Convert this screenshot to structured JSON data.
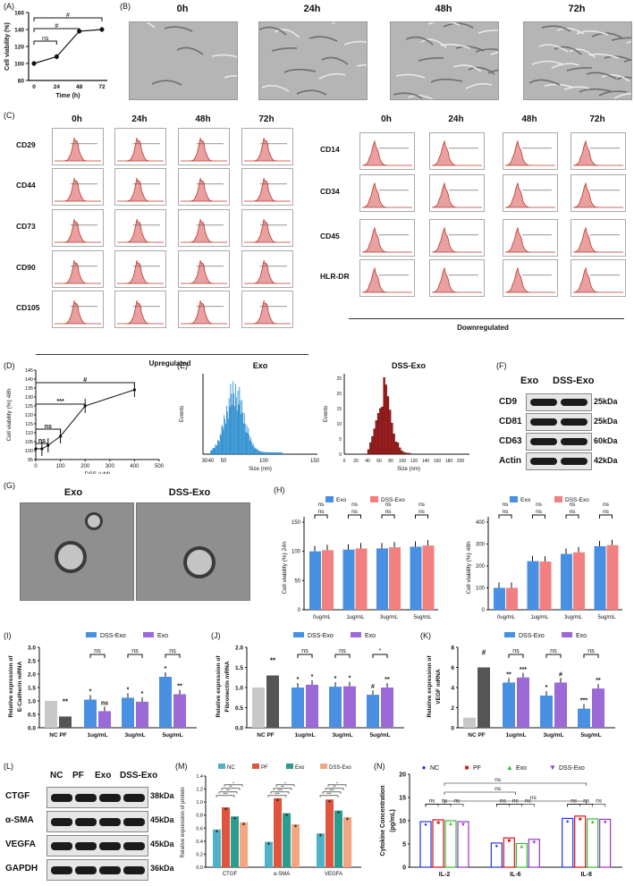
{
  "panels": {
    "A": "(A)",
    "B": "(B)",
    "C": "(C)",
    "D": "(D)",
    "E": "(E)",
    "F": "(F)",
    "G": "(G)",
    "H": "(H)",
    "I": "(I)",
    "J": "(J)",
    "K": "(K)",
    "L": "(L)",
    "M": "(M)",
    "N": "(N)"
  },
  "panelA": {
    "ylabel": "Cell viability (%)",
    "xlabel": "Time (h)",
    "x": [
      0,
      24,
      48,
      72
    ],
    "y": [
      100,
      108,
      138,
      140
    ],
    "err": [
      3,
      3,
      3,
      3
    ],
    "yticks": [
      80,
      100,
      120,
      140,
      160
    ],
    "sig": [
      "ns",
      "#",
      "#"
    ]
  },
  "panelB": {
    "times": [
      "0h",
      "24h",
      "48h",
      "72h"
    ]
  },
  "panelC": {
    "times": [
      "0h",
      "24h",
      "48h",
      "72h"
    ],
    "up_markers": [
      "CD29",
      "CD44",
      "CD73",
      "CD90",
      "CD105"
    ],
    "down_markers": [
      "CD14",
      "CD34",
      "CD45",
      "HLR-DR"
    ],
    "up_caption": "Upregulated",
    "down_caption": "Downregulated"
  },
  "panelD": {
    "ylabel": "Cell viability (%) 48h",
    "xlabel": "DSS (μM)",
    "x": [
      0,
      25,
      50,
      100,
      200,
      400
    ],
    "y": [
      101,
      101,
      103,
      108,
      125,
      134
    ],
    "xticks": [
      0,
      100,
      200,
      300,
      400,
      500
    ],
    "yticks": [
      95,
      100,
      105,
      110,
      115,
      120,
      125,
      130,
      135,
      140,
      145
    ],
    "sig": [
      "ns",
      "ns",
      "***",
      "#"
    ]
  },
  "panelE": {
    "exo": {
      "title": "Exo",
      "xlabel": "Size (nm)",
      "ylabel": "Events",
      "xticks": [
        "30",
        "40",
        "50",
        "100",
        "150"
      ]
    },
    "dss": {
      "title": "DSS-Exo",
      "xlabel": "Size (nm)",
      "ylabel": "Events",
      "xticks": [
        "0",
        "20",
        "40",
        "60",
        "80",
        "100",
        "120",
        "140",
        "160",
        "180",
        "200"
      ],
      "yticks": [
        "0",
        "5",
        "10",
        "15",
        "20",
        "25"
      ]
    }
  },
  "panelF": {
    "cols": [
      "Exo",
      "DSS-Exo"
    ],
    "rows": [
      {
        "name": "CD9",
        "kda": "25kDa"
      },
      {
        "name": "CD81",
        "kda": "25kDa"
      },
      {
        "name": "CD63",
        "kda": "60kDa"
      },
      {
        "name": "Actin",
        "kda": "42kDa"
      }
    ]
  },
  "panelG": {
    "labels": [
      "Exo",
      "DSS-Exo"
    ]
  },
  "panelH": {
    "legend": [
      "Exo",
      "DSS-Exo"
    ],
    "categories": [
      "0ug/mL",
      "1ug/mL",
      "3ug/mL",
      "5ug/mL"
    ],
    "left": {
      "ylabel": "Cell viability (%) 24h",
      "exo": [
        100,
        103,
        105,
        108
      ],
      "dss": [
        102,
        105,
        107,
        110
      ],
      "yticks": [
        "0",
        "50",
        "100",
        "150"
      ],
      "sig": [
        "ns",
        "ns",
        "ns",
        "ns",
        "ns",
        "ns",
        "ns",
        "ns"
      ]
    },
    "right": {
      "ylabel": "Cell viability (%) 48h",
      "exo": [
        100,
        222,
        255,
        290
      ],
      "dss": [
        100,
        220,
        262,
        295
      ],
      "yticks": [
        "0",
        "100",
        "200",
        "300",
        "400"
      ],
      "sig": [
        "ns",
        "ns",
        "ns",
        "ns",
        "ns",
        "ns",
        "ns",
        "ns"
      ]
    }
  },
  "panelI": {
    "ylabel": "Relative expression of E-Cadherin mRNA",
    "legend": [
      "DSS-Exo",
      "Exo"
    ],
    "categories": [
      "NC PF",
      "1ug/mL",
      "3ug/mL",
      "5ug/mL"
    ],
    "nc": 1.0,
    "pf": 0.42,
    "dss": [
      1.05,
      1.12,
      1.9
    ],
    "exo": [
      0.62,
      0.97,
      1.25
    ],
    "yticks": [
      "0.0",
      "0.5",
      "1.0",
      "1.5",
      "2.0",
      "2.5",
      "3.0"
    ],
    "marks": [
      "**",
      "*",
      "ns",
      "*",
      "*",
      "*",
      "**",
      "ns",
      "ns",
      "ns"
    ]
  },
  "panelJ": {
    "ylabel": "Relative expression of Fibronectin mRNA",
    "legend": [
      "DSS-Exo",
      "Exo"
    ],
    "categories": [
      "NC PF",
      "1ug/mL",
      "3ug/mL",
      "5ug/mL"
    ],
    "nc": 1.0,
    "pf": 1.3,
    "dss": [
      1.0,
      1.02,
      0.82
    ],
    "exo": [
      1.07,
      1.03,
      1.0
    ],
    "yticks": [
      "0.0",
      "0.5",
      "1.0",
      "1.5",
      "2.0"
    ],
    "marks": [
      "**",
      "*",
      "*",
      "*",
      "*",
      "#",
      "**",
      "ns",
      "ns",
      "ns",
      "*"
    ]
  },
  "panelK": {
    "ylabel": "Relative expression of VEGF mRNA",
    "legend": [
      "DSS-Exo",
      "Exo"
    ],
    "categories": [
      "NC PF",
      "1ug/mL",
      "3ug/mL",
      "5ug/mL"
    ],
    "nc": 1.0,
    "pf": 6.0,
    "dss": [
      4.5,
      3.2,
      1.9
    ],
    "exo": [
      5.0,
      4.5,
      3.9
    ],
    "yticks": [
      "0",
      "2",
      "4",
      "6",
      "8"
    ],
    "marks": [
      "#",
      "**",
      "***",
      "*",
      "#",
      "***",
      "**",
      "ns",
      "ns",
      "ns"
    ]
  },
  "panelL": {
    "cols": [
      "NC",
      "PF",
      "Exo",
      "DSS-Exo"
    ],
    "rows": [
      {
        "name": "CTGF",
        "kda": "38kDa"
      },
      {
        "name": "α-SMA",
        "kda": "45kDa"
      },
      {
        "name": "VEGFA",
        "kda": "45kDa"
      },
      {
        "name": "GAPDH",
        "kda": "36kDa"
      }
    ]
  },
  "panelM": {
    "ylabel": "Relative expression of  protein",
    "legend": [
      "NC",
      "PF",
      "Exo",
      "DSS-Exo"
    ],
    "categories": [
      "CTGF",
      "α-SMA",
      "VEGFA"
    ],
    "series": [
      {
        "name": "NC",
        "values": [
          0.58,
          0.39,
          0.52
        ]
      },
      {
        "name": "PF",
        "values": [
          0.92,
          1.06,
          1.04
        ]
      },
      {
        "name": "Exo",
        "values": [
          0.78,
          0.83,
          0.87
        ]
      },
      {
        "name": "DSS-Exo",
        "values": [
          0.69,
          0.66,
          0.77
        ]
      }
    ],
    "yticks": [
      "0.0",
      "0.2",
      "0.4",
      "0.6",
      "0.8",
      "1.0",
      "1.2",
      "1.4"
    ],
    "sig": [
      "***",
      "**",
      "**",
      "*",
      "***",
      "***",
      "**",
      "*",
      "***",
      "***",
      "**",
      "*"
    ]
  },
  "panelN": {
    "ylabel": "Cytokine Concentration (pg/mL)",
    "legend": [
      "NC",
      "PF",
      "Exo",
      "DSS-Exo"
    ],
    "categories": [
      "IL-2",
      "IL-6",
      "IL-8"
    ],
    "series": [
      {
        "name": "NC",
        "values": [
          9.8,
          5.2,
          10.5
        ]
      },
      {
        "name": "PF",
        "values": [
          10.2,
          6.3,
          11.0
        ]
      },
      {
        "name": "Exo",
        "values": [
          10.0,
          5.1,
          10.4
        ]
      },
      {
        "name": "DSS-Exo",
        "values": [
          9.8,
          6.0,
          10.3
        ]
      }
    ],
    "yticks": [
      "0",
      "5",
      "10",
      "15",
      "20"
    ],
    "sig": [
      "ns",
      "ns",
      "ns",
      "ns",
      "ns",
      "ns",
      "ns",
      "ns",
      "ns",
      "ns",
      "ns",
      "ns",
      "ns",
      "ns",
      "ns"
    ]
  },
  "chart_data": [
    {
      "type": "line",
      "title": "",
      "xlabel": "Time (h)",
      "ylabel": "Cell viability (%)",
      "x": [
        0,
        24,
        48,
        72
      ],
      "values": [
        100,
        108,
        138,
        140
      ],
      "ylim": [
        80,
        160
      ]
    },
    {
      "type": "line",
      "title": "",
      "xlabel": "DSS (μM)",
      "ylabel": "Cell viability (%) 48h",
      "x": [
        0,
        25,
        50,
        100,
        200,
        400
      ],
      "values": [
        101,
        101,
        103,
        108,
        125,
        134
      ],
      "ylim": [
        95,
        145
      ]
    },
    {
      "type": "bar",
      "title": "Relative expression of  protein",
      "categories": [
        "CTGF",
        "α-SMA",
        "VEGFA"
      ],
      "series": [
        {
          "name": "NC",
          "values": [
            0.58,
            0.39,
            0.52
          ]
        },
        {
          "name": "PF",
          "values": [
            0.92,
            1.06,
            1.04
          ]
        },
        {
          "name": "Exo",
          "values": [
            0.78,
            0.83,
            0.87
          ]
        },
        {
          "name": "DSS-Exo",
          "values": [
            0.69,
            0.66,
            0.77
          ]
        }
      ],
      "ylim": [
        0,
        1.4
      ]
    },
    {
      "type": "bar",
      "title": "Cytokine Concentration (pg/mL)",
      "categories": [
        "IL-2",
        "IL-6",
        "IL-8"
      ],
      "series": [
        {
          "name": "NC",
          "values": [
            9.8,
            5.2,
            10.5
          ]
        },
        {
          "name": "PF",
          "values": [
            10.2,
            6.3,
            11.0
          ]
        },
        {
          "name": "Exo",
          "values": [
            10.0,
            5.1,
            10.4
          ]
        },
        {
          "name": "DSS-Exo",
          "values": [
            9.8,
            6.0,
            10.3
          ]
        }
      ],
      "ylim": [
        0,
        20
      ]
    }
  ],
  "colors": {
    "exo_blue": "#4a90e2",
    "dss_pink": "#f28080",
    "blue_dark": "#3a6fc4",
    "purple": "#9b6ad6",
    "nc_teal": "#4fb3c8",
    "pf_red": "#e0533c",
    "exo_green": "#2a9d8f",
    "dss_salmon": "#f4a582",
    "hist": "#e8a0a0",
    "hist_line": "#c0392b",
    "grey_bar": "#c8c8c8",
    "dark_bar": "#555555"
  }
}
